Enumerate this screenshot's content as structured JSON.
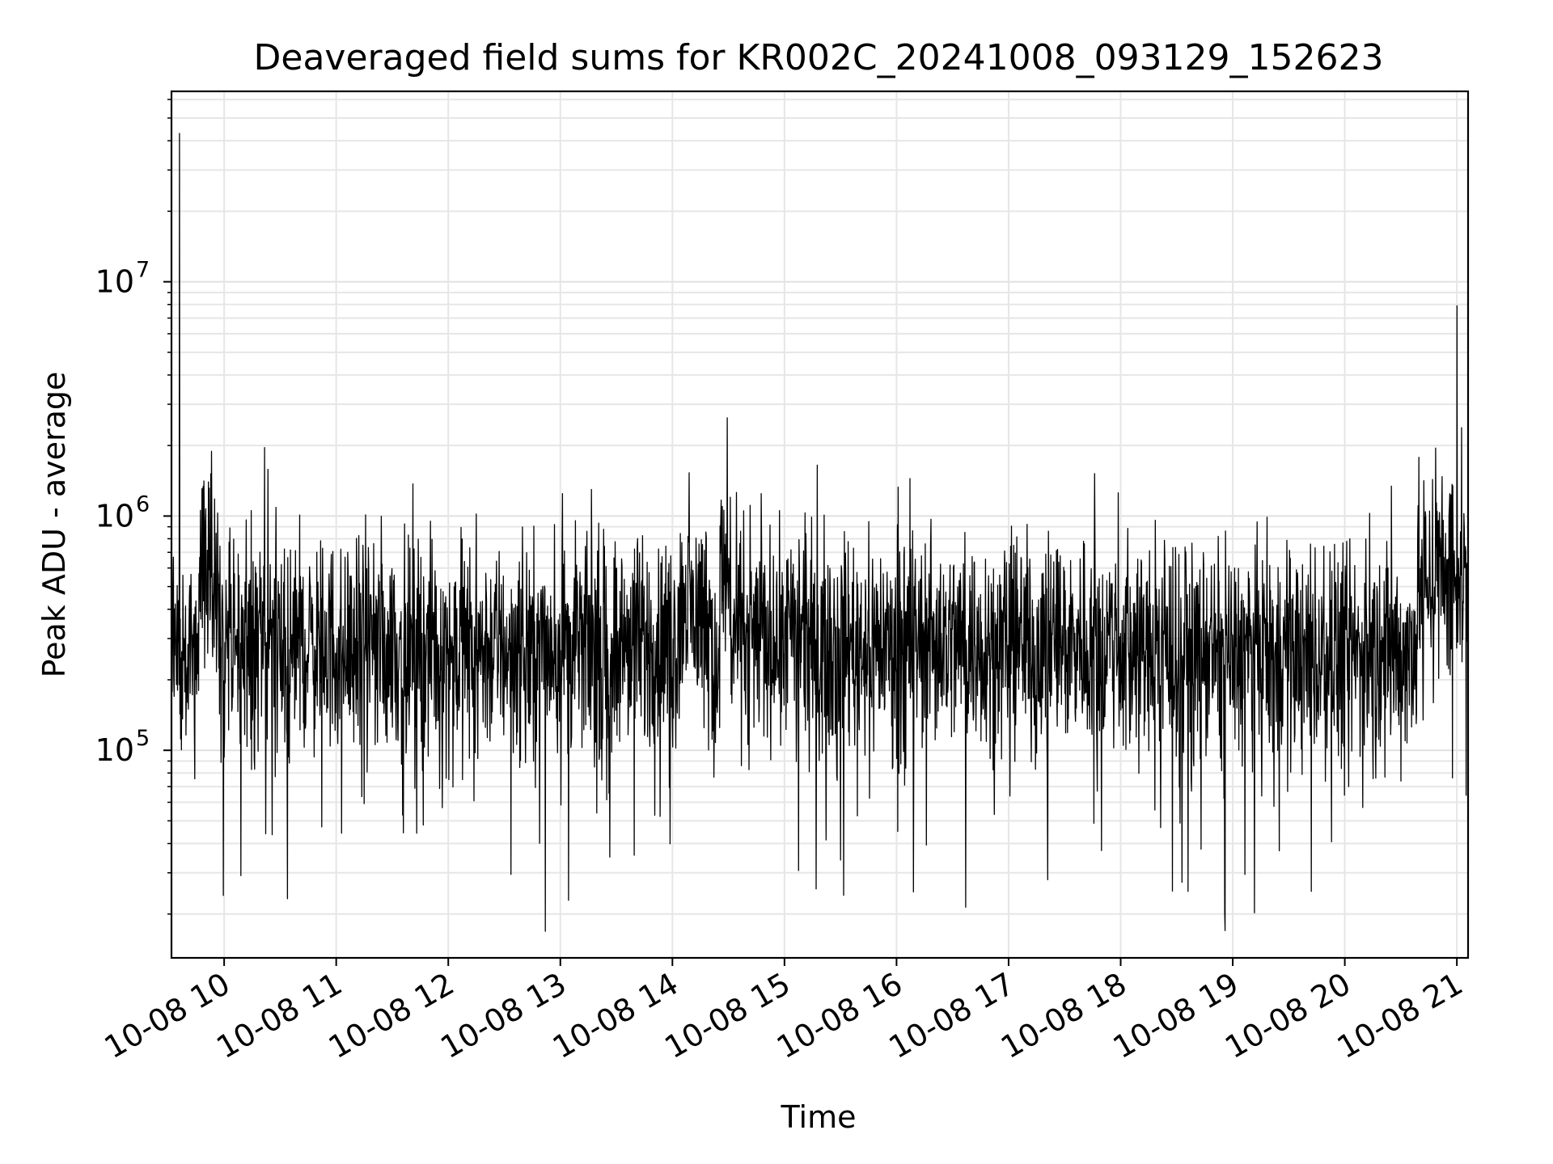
{
  "chart_data": {
    "type": "line",
    "title": "Deaveraged field sums for KR002C_20241008_093129_152623",
    "xlabel": "Time",
    "ylabel": "Peak ADU - average",
    "yscale": "log",
    "xlim": [
      9.53,
      21.1
    ],
    "ylim": [
      13000,
      65000000
    ],
    "grid": true,
    "line_color": "#000000",
    "x_ticks": [
      {
        "value": 10,
        "label": "10-08 10"
      },
      {
        "value": 11,
        "label": "10-08 11"
      },
      {
        "value": 12,
        "label": "10-08 12"
      },
      {
        "value": 13,
        "label": "10-08 13"
      },
      {
        "value": 14,
        "label": "10-08 14"
      },
      {
        "value": 15,
        "label": "10-08 15"
      },
      {
        "value": 16,
        "label": "10-08 16"
      },
      {
        "value": 17,
        "label": "10-08 17"
      },
      {
        "value": 18,
        "label": "10-08 18"
      },
      {
        "value": 19,
        "label": "10-08 19"
      },
      {
        "value": 20,
        "label": "10-08 20"
      },
      {
        "value": 21,
        "label": "10-08 21"
      }
    ],
    "y_ticks": [
      {
        "value": 100000,
        "base": "10",
        "exp": "5"
      },
      {
        "value": 1000000,
        "base": "10",
        "exp": "6"
      },
      {
        "value": 10000000,
        "base": "10",
        "exp": "7"
      }
    ],
    "series": [
      {
        "name": "Peak ADU - average",
        "baseline_segments": [
          {
            "t0": 9.53,
            "t1": 9.6,
            "level": 350000
          },
          {
            "t0": 9.6,
            "t1": 9.78,
            "level": 250000
          },
          {
            "t0": 9.78,
            "t1": 9.95,
            "level": 600000
          },
          {
            "t0": 9.95,
            "t1": 11.0,
            "level": 280000
          },
          {
            "t0": 11.0,
            "t1": 13.0,
            "level": 270000
          },
          {
            "t0": 13.0,
            "t1": 14.05,
            "level": 280000
          },
          {
            "t0": 14.05,
            "t1": 14.35,
            "level": 400000
          },
          {
            "t0": 14.35,
            "t1": 14.42,
            "level": 200000
          },
          {
            "t0": 14.42,
            "t1": 14.52,
            "level": 550000
          },
          {
            "t0": 14.52,
            "t1": 15.3,
            "level": 300000
          },
          {
            "t0": 15.3,
            "t1": 18.0,
            "level": 290000
          },
          {
            "t0": 18.0,
            "t1": 20.65,
            "level": 260000
          },
          {
            "t0": 20.65,
            "t1": 20.95,
            "level": 550000
          },
          {
            "t0": 20.95,
            "t1": 21.1,
            "level": 550000
          }
        ],
        "noise_decades": 0.22,
        "spikes": [
          {
            "t": 9.6,
            "value": 43000000
          },
          {
            "t": 9.86,
            "value": 1400000
          },
          {
            "t": 10.37,
            "value": 44000
          },
          {
            "t": 12.25,
            "value": 1020000
          },
          {
            "t": 13.44,
            "value": 35000
          },
          {
            "t": 14.46,
            "value": 1060000
          },
          {
            "t": 15.5,
            "value": 34000
          },
          {
            "t": 17.35,
            "value": 28000
          },
          {
            "t": 18.6,
            "value": 25000
          },
          {
            "t": 18.93,
            "value": 17000
          },
          {
            "t": 19.7,
            "value": 25000
          },
          {
            "t": 20.81,
            "value": 1950000
          },
          {
            "t": 21.0,
            "value": 7900000
          }
        ]
      }
    ]
  }
}
